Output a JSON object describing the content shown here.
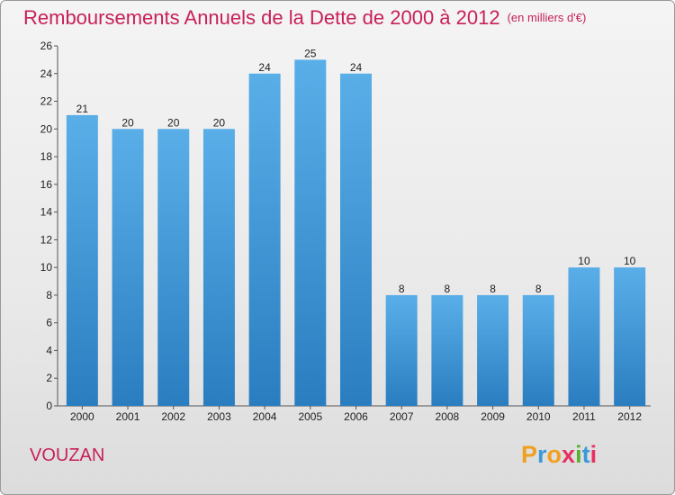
{
  "title": "Remboursements Annuels de la Dette de 2000 à 2012",
  "unit": "(en milliers d'€)",
  "city": "VOUZAN",
  "logo": {
    "text": "Proxiti",
    "letters": [
      "P",
      "r",
      "o",
      "x",
      "i",
      "t",
      "i"
    ],
    "colors": [
      "#f0a020",
      "#3a9ad8",
      "#f0a020",
      "#e83060",
      "#58b030",
      "#3a9ad8",
      "#e83060"
    ]
  },
  "colors": {
    "bar_top": "#5aaee8",
    "bar_bottom": "#2a7ec0",
    "title": "#c8205a"
  },
  "chart_data": {
    "type": "bar",
    "title": "Remboursements Annuels de la Dette de 2000 à 2012",
    "xlabel": "",
    "ylabel": "",
    "categories": [
      "2000",
      "2001",
      "2002",
      "2003",
      "2004",
      "2005",
      "2006",
      "2007",
      "2008",
      "2009",
      "2010",
      "2011",
      "2012"
    ],
    "values": [
      21,
      20,
      20,
      20,
      24,
      25,
      24,
      8,
      8,
      8,
      8,
      10,
      10
    ],
    "ylim": [
      0,
      26
    ],
    "yticks": [
      0,
      2,
      4,
      6,
      8,
      10,
      12,
      14,
      16,
      18,
      20,
      22,
      24,
      26
    ],
    "grid": false
  }
}
